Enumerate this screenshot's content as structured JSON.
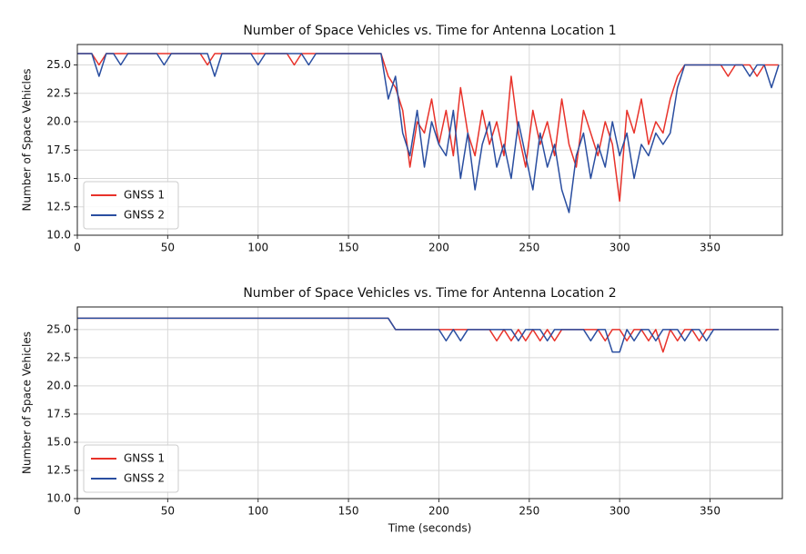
{
  "chart_data": [
    {
      "type": "line",
      "title": "Number of Space Vehicles vs. Time for Antenna Location 1",
      "ylabel": "Number of Space Vehicles",
      "x": [
        0,
        4,
        8,
        12,
        16,
        20,
        24,
        28,
        32,
        36,
        40,
        44,
        48,
        52,
        56,
        60,
        64,
        68,
        72,
        76,
        80,
        84,
        88,
        92,
        96,
        100,
        104,
        108,
        112,
        116,
        120,
        124,
        128,
        132,
        136,
        140,
        144,
        148,
        152,
        156,
        160,
        164,
        168,
        172,
        176,
        180,
        184,
        188,
        192,
        196,
        200,
        204,
        208,
        212,
        216,
        220,
        224,
        228,
        232,
        236,
        240,
        244,
        248,
        252,
        256,
        260,
        264,
        268,
        272,
        276,
        280,
        284,
        288,
        292,
        296,
        300,
        304,
        308,
        312,
        316,
        320,
        324,
        328,
        332,
        336,
        340,
        344,
        348,
        352,
        356,
        360,
        364,
        368,
        372,
        376,
        380,
        384,
        388
      ],
      "series": [
        {
          "name": "GNSS 1",
          "color": "#e8322a",
          "values": [
            26,
            26,
            26,
            25,
            26,
            26,
            26,
            26,
            26,
            26,
            26,
            26,
            26,
            26,
            26,
            26,
            26,
            26,
            25,
            26,
            26,
            26,
            26,
            26,
            26,
            26,
            26,
            26,
            26,
            26,
            25,
            26,
            26,
            26,
            26,
            26,
            26,
            26,
            26,
            26,
            26,
            26,
            26,
            24,
            23,
            21,
            16,
            20,
            19,
            22,
            18,
            21,
            17,
            23,
            19,
            17,
            21,
            18,
            20,
            17,
            24,
            19,
            16,
            21,
            18,
            20,
            17,
            22,
            18,
            16,
            21,
            19,
            17,
            20,
            18,
            13,
            21,
            19,
            22,
            18,
            20,
            19,
            22,
            24,
            25,
            25,
            25,
            25,
            25,
            25,
            24,
            25,
            25,
            25,
            24,
            25,
            25,
            25
          ]
        },
        {
          "name": "GNSS 2",
          "color": "#2a4ea0",
          "values": [
            26,
            26,
            26,
            24,
            26,
            26,
            25,
            26,
            26,
            26,
            26,
            26,
            25,
            26,
            26,
            26,
            26,
            26,
            26,
            24,
            26,
            26,
            26,
            26,
            26,
            25,
            26,
            26,
            26,
            26,
            26,
            26,
            25,
            26,
            26,
            26,
            26,
            26,
            26,
            26,
            26,
            26,
            26,
            22,
            24,
            19,
            17,
            21,
            16,
            20,
            18,
            17,
            21,
            15,
            19,
            14,
            18,
            20,
            16,
            18,
            15,
            20,
            17,
            14,
            19,
            16,
            18,
            14,
            12,
            17,
            19,
            15,
            18,
            16,
            20,
            17,
            19,
            15,
            18,
            17,
            19,
            18,
            19,
            23,
            25,
            25,
            25,
            25,
            25,
            25,
            25,
            25,
            25,
            24,
            25,
            25,
            23,
            25
          ]
        }
      ],
      "xlim": [
        0,
        390
      ],
      "ylim": [
        10,
        26.8
      ],
      "xticks": [
        0,
        50,
        100,
        150,
        200,
        250,
        300,
        350
      ],
      "yticks": [
        {
          "value": 10,
          "label": "10.0"
        },
        12.5,
        {
          "value": 15,
          "label": "15.0"
        },
        17.5,
        {
          "value": 20,
          "label": "20.0"
        },
        22.5,
        {
          "value": 25,
          "label": "25.0"
        }
      ],
      "grid": true,
      "legend": "lower left"
    },
    {
      "type": "line",
      "title": "Number of Space Vehicles vs. Time for Antenna Location 2",
      "ylabel": "Number of Space Vehicles",
      "xlabel": "Time (seconds)",
      "x": [
        0,
        4,
        8,
        12,
        16,
        20,
        24,
        28,
        32,
        36,
        40,
        44,
        48,
        52,
        56,
        60,
        64,
        68,
        72,
        76,
        80,
        84,
        88,
        92,
        96,
        100,
        104,
        108,
        112,
        116,
        120,
        124,
        128,
        132,
        136,
        140,
        144,
        148,
        152,
        156,
        160,
        164,
        168,
        172,
        176,
        180,
        184,
        188,
        192,
        196,
        200,
        204,
        208,
        212,
        216,
        220,
        224,
        228,
        232,
        236,
        240,
        244,
        248,
        252,
        256,
        260,
        264,
        268,
        272,
        276,
        280,
        284,
        288,
        292,
        296,
        300,
        304,
        308,
        312,
        316,
        320,
        324,
        328,
        332,
        336,
        340,
        344,
        348,
        352,
        356,
        360,
        364,
        368,
        372,
        376,
        380,
        384,
        388
      ],
      "series": [
        {
          "name": "GNSS 1",
          "color": "#e8322a",
          "values": [
            26,
            26,
            26,
            26,
            26,
            26,
            26,
            26,
            26,
            26,
            26,
            26,
            26,
            26,
            26,
            26,
            26,
            26,
            26,
            26,
            26,
            26,
            26,
            26,
            26,
            26,
            26,
            26,
            26,
            26,
            26,
            26,
            26,
            26,
            26,
            26,
            26,
            26,
            26,
            26,
            26,
            26,
            26,
            26,
            25,
            25,
            25,
            25,
            25,
            25,
            25,
            25,
            25,
            25,
            25,
            25,
            25,
            25,
            24,
            25,
            24,
            25,
            24,
            25,
            24,
            25,
            24,
            25,
            25,
            25,
            25,
            25,
            25,
            24,
            25,
            25,
            24,
            25,
            25,
            24,
            25,
            23,
            25,
            24,
            25,
            25,
            24,
            25,
            25,
            25,
            25,
            25,
            25,
            25,
            25,
            25,
            25,
            25
          ]
        },
        {
          "name": "GNSS 2",
          "color": "#2a4ea0",
          "values": [
            26,
            26,
            26,
            26,
            26,
            26,
            26,
            26,
            26,
            26,
            26,
            26,
            26,
            26,
            26,
            26,
            26,
            26,
            26,
            26,
            26,
            26,
            26,
            26,
            26,
            26,
            26,
            26,
            26,
            26,
            26,
            26,
            26,
            26,
            26,
            26,
            26,
            26,
            26,
            26,
            26,
            26,
            26,
            26,
            25,
            25,
            25,
            25,
            25,
            25,
            25,
            24,
            25,
            24,
            25,
            25,
            25,
            25,
            25,
            25,
            25,
            24,
            25,
            25,
            25,
            24,
            25,
            25,
            25,
            25,
            25,
            24,
            25,
            25,
            23,
            23,
            25,
            24,
            25,
            25,
            24,
            25,
            25,
            25,
            24,
            25,
            25,
            24,
            25,
            25,
            25,
            25,
            25,
            25,
            25,
            25,
            25,
            25
          ]
        }
      ],
      "xlim": [
        0,
        390
      ],
      "ylim": [
        10,
        27
      ],
      "xticks": [
        0,
        50,
        100,
        150,
        200,
        250,
        300,
        350
      ],
      "yticks": [
        {
          "value": 10,
          "label": "10.0"
        },
        12.5,
        {
          "value": 15,
          "label": "15.0"
        },
        17.5,
        {
          "value": 20,
          "label": "20.0"
        },
        22.5,
        {
          "value": 25,
          "label": "25.0"
        }
      ],
      "grid": true,
      "legend": "lower left"
    }
  ]
}
